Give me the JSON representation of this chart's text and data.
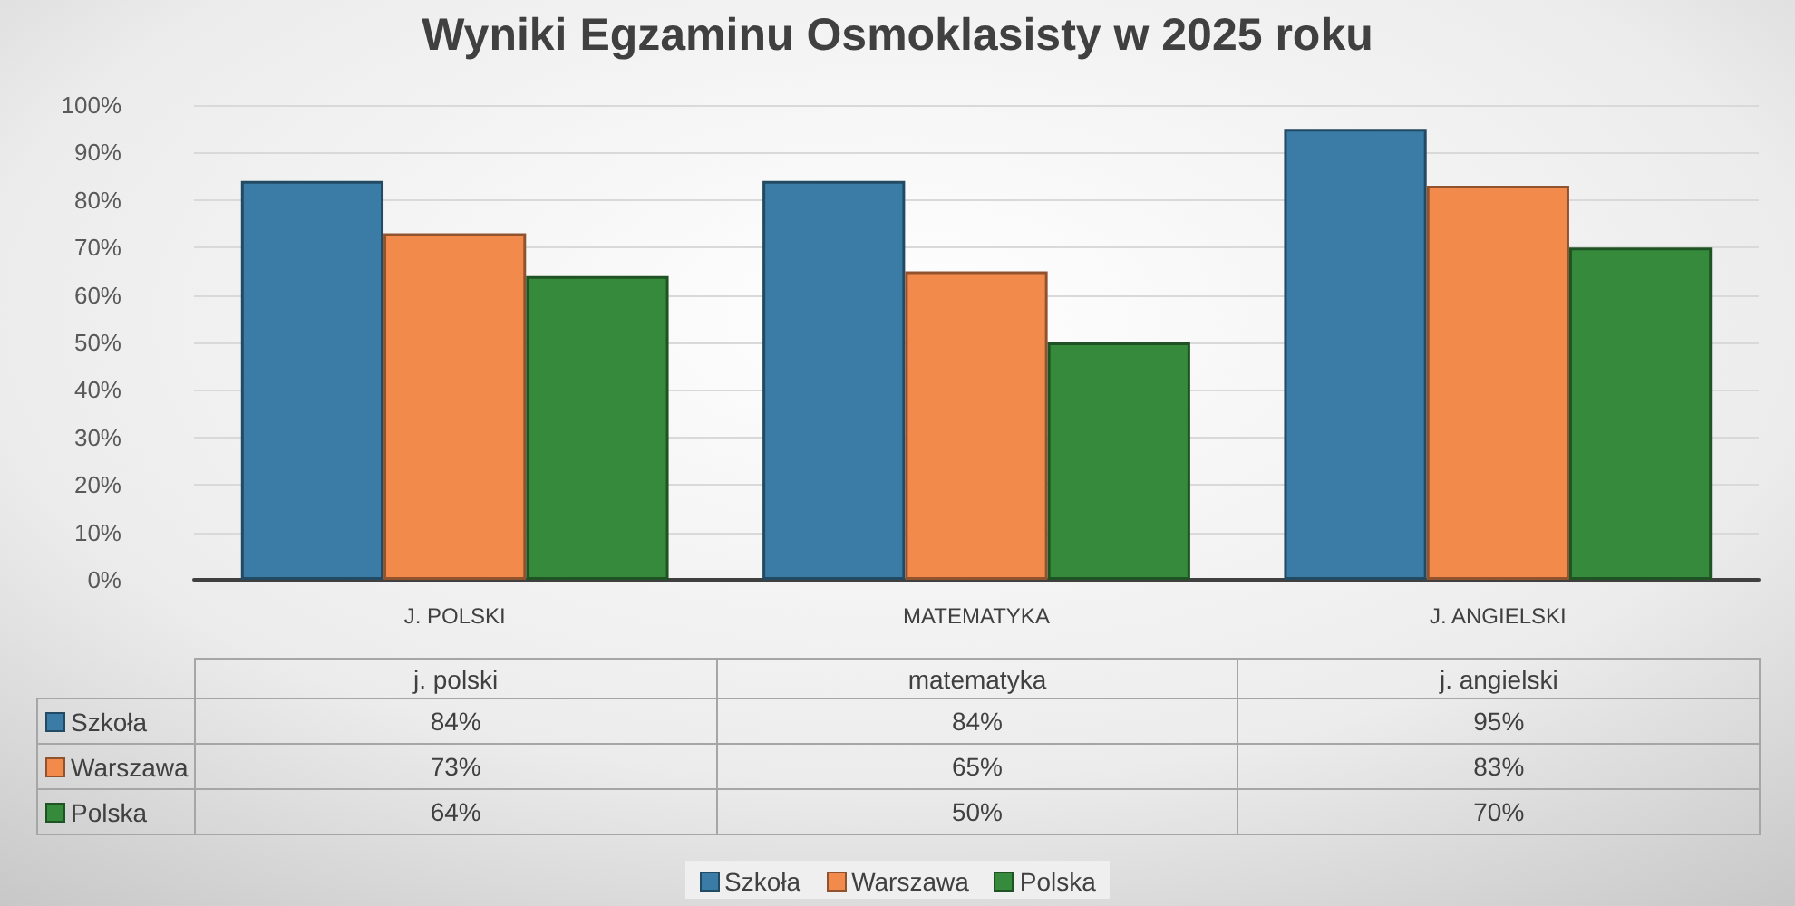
{
  "chart_data": {
    "type": "bar",
    "title": "Wyniki Egzaminu Osmoklasisty w 2025 roku",
    "categories": [
      "J. POLSKI",
      "MATEMATYKA",
      "J. ANGIELSKI"
    ],
    "series": [
      {
        "name": "Szkoła",
        "color": "#3a7ca5",
        "values": [
          84,
          84,
          95
        ],
        "value_labels": [
          "84%",
          "84%",
          "95%"
        ]
      },
      {
        "name": "Warszawa",
        "color": "#f28a4c",
        "values": [
          73,
          65,
          83
        ],
        "value_labels": [
          "73%",
          "65%",
          "83%"
        ]
      },
      {
        "name": "Polska",
        "color": "#358a3c",
        "values": [
          64,
          50,
          70
        ],
        "value_labels": [
          "64%",
          "50%",
          "70%"
        ]
      }
    ],
    "ylim": [
      0,
      100
    ],
    "yticks": [
      {
        "value": 0,
        "label": "0%"
      },
      {
        "value": 10,
        "label": "10%"
      },
      {
        "value": 20,
        "label": "20%"
      },
      {
        "value": 30,
        "label": "30%"
      },
      {
        "value": 40,
        "label": "40%"
      },
      {
        "value": 50,
        "label": "50%"
      },
      {
        "value": 60,
        "label": "60%"
      },
      {
        "value": 70,
        "label": "70%"
      },
      {
        "value": 80,
        "label": "80%"
      },
      {
        "value": 90,
        "label": "90%"
      },
      {
        "value": 100,
        "label": "100%"
      }
    ],
    "grid": "y",
    "legend": "bottom",
    "annotations": [
      "j. polski",
      "matematyka",
      "j. angielski"
    ]
  }
}
